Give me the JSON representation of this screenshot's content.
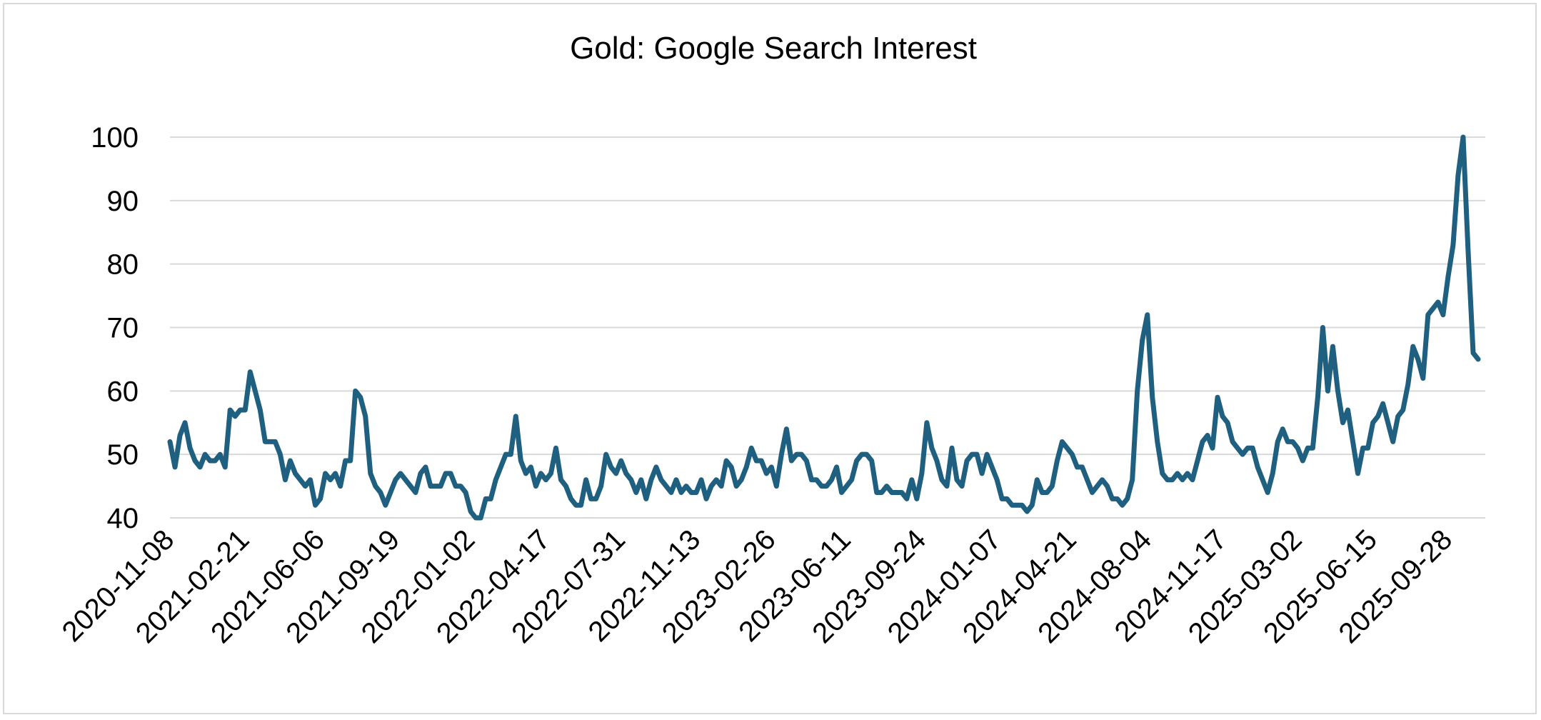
{
  "chart_data": {
    "type": "line",
    "title": "Gold: Google Search Interest",
    "xlabel": "",
    "ylabel": "",
    "ylim": [
      40,
      100
    ],
    "yticks": [
      40,
      50,
      60,
      70,
      80,
      90,
      100
    ],
    "grid": true,
    "legend": "none",
    "x_tick_labels": [
      "2020-11-08",
      "2021-02-21",
      "2021-06-06",
      "2021-09-19",
      "2022-01-02",
      "2022-04-17",
      "2022-07-31",
      "2022-11-13",
      "2023-02-26",
      "2023-06-11",
      "2023-09-24",
      "2024-01-07",
      "2024-04-21",
      "2024-08-04",
      "2024-11-17",
      "2025-03-02",
      "2025-06-15",
      "2025-09-28"
    ],
    "x_start": "2020-11-08",
    "x_interval": "weekly",
    "series": [
      {
        "color": "#1f5f7f",
        "values": [
          52,
          48,
          53,
          55,
          51,
          49,
          48,
          50,
          49,
          49,
          50,
          48,
          57,
          56,
          57,
          57,
          63,
          60,
          57,
          52,
          52,
          52,
          50,
          46,
          49,
          47,
          46,
          45,
          46,
          42,
          43,
          47,
          46,
          47,
          45,
          49,
          49,
          60,
          59,
          56,
          47,
          45,
          44,
          42,
          44,
          46,
          47,
          46,
          45,
          44,
          47,
          48,
          45,
          45,
          45,
          47,
          47,
          45,
          45,
          44,
          41,
          40,
          40,
          43,
          43,
          46,
          48,
          50,
          50,
          56,
          49,
          47,
          48,
          45,
          47,
          46,
          47,
          51,
          46,
          45,
          43,
          42,
          42,
          46,
          43,
          43,
          45,
          50,
          48,
          47,
          49,
          47,
          46,
          44,
          46,
          43,
          46,
          48,
          46,
          45,
          44,
          46,
          44,
          45,
          44,
          44,
          46,
          43,
          45,
          46,
          45,
          49,
          48,
          45,
          46,
          48,
          51,
          49,
          49,
          47,
          48,
          45,
          50,
          54,
          49,
          50,
          50,
          49,
          46,
          46,
          45,
          45,
          46,
          48,
          44,
          45,
          46,
          49,
          50,
          50,
          49,
          44,
          44,
          45,
          44,
          44,
          44,
          43,
          46,
          43,
          47,
          55,
          51,
          49,
          46,
          45,
          51,
          46,
          45,
          49,
          50,
          50,
          47,
          50,
          48,
          46,
          43,
          43,
          42,
          42,
          42,
          41,
          42,
          46,
          44,
          44,
          45,
          49,
          52,
          51,
          50,
          48,
          48,
          46,
          44,
          45,
          46,
          45,
          43,
          43,
          42,
          43,
          46,
          60,
          68,
          72,
          59,
          52,
          47,
          46,
          46,
          47,
          46,
          47,
          46,
          49,
          52,
          53,
          51,
          59,
          56,
          55,
          52,
          51,
          50,
          51,
          51,
          48,
          46,
          44,
          47,
          52,
          54,
          52,
          52,
          51,
          49,
          51,
          51,
          59,
          70,
          60,
          67,
          60,
          55,
          57,
          52,
          47,
          51,
          51,
          55,
          56,
          58,
          55,
          52,
          56,
          57,
          61,
          67,
          65,
          62,
          72,
          73,
          74,
          72,
          78,
          83,
          94,
          100,
          82,
          66,
          65
        ]
      }
    ]
  }
}
